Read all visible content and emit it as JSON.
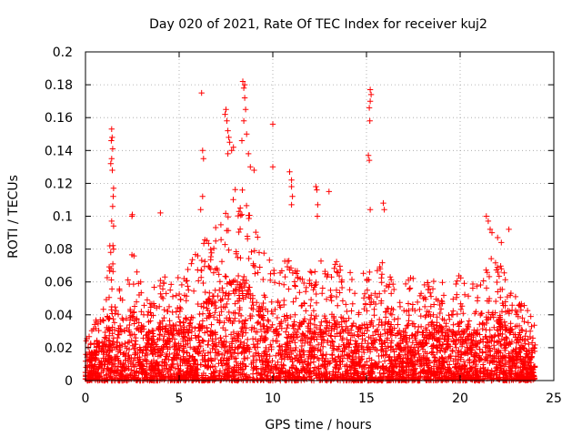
{
  "chart_data": {
    "type": "scatter",
    "title": "Day 020 of 2021, Rate Of TEC Index for receiver kuj2",
    "xlabel": "GPS time / hours",
    "ylabel": "ROTI / TECUs",
    "xlim": [
      0,
      25
    ],
    "ylim": [
      0,
      0.2
    ],
    "x_ticks": [
      0,
      5,
      10,
      15,
      20,
      25
    ],
    "x_tick_labels": [
      "0",
      "5",
      "10",
      "15",
      "20",
      "25"
    ],
    "y_ticks": [
      0,
      0.02,
      0.04,
      0.06,
      0.08,
      0.1,
      0.12,
      0.14,
      0.16,
      0.18,
      0.2
    ],
    "y_tick_labels": [
      "0",
      "0.02",
      "0.04",
      "0.06",
      "0.08",
      "0.1",
      "0.12",
      "0.14",
      "0.16",
      "0.18",
      "0.2"
    ],
    "grid": true,
    "marker": "+",
    "color": "#ff0000",
    "time_range_hours": [
      0,
      24
    ],
    "envelope": [
      [
        0.0,
        0.025
      ],
      [
        0.5,
        0.035
      ],
      [
        1.0,
        0.05
      ],
      [
        1.5,
        0.09
      ],
      [
        2.0,
        0.05
      ],
      [
        2.5,
        0.08
      ],
      [
        3.0,
        0.06
      ],
      [
        3.5,
        0.055
      ],
      [
        4.0,
        0.07
      ],
      [
        4.5,
        0.06
      ],
      [
        5.0,
        0.065
      ],
      [
        5.5,
        0.07
      ],
      [
        6.0,
        0.08
      ],
      [
        6.5,
        0.09
      ],
      [
        7.0,
        0.1
      ],
      [
        7.5,
        0.11
      ],
      [
        8.0,
        0.12
      ],
      [
        8.5,
        0.115
      ],
      [
        9.0,
        0.1
      ],
      [
        9.5,
        0.09
      ],
      [
        10.0,
        0.075
      ],
      [
        10.5,
        0.07
      ],
      [
        11.0,
        0.08
      ],
      [
        11.5,
        0.065
      ],
      [
        12.0,
        0.07
      ],
      [
        12.5,
        0.08
      ],
      [
        13.0,
        0.065
      ],
      [
        13.5,
        0.075
      ],
      [
        14.0,
        0.07
      ],
      [
        14.5,
        0.06
      ],
      [
        15.0,
        0.07
      ],
      [
        15.5,
        0.065
      ],
      [
        16.0,
        0.08
      ],
      [
        16.5,
        0.055
      ],
      [
        17.0,
        0.06
      ],
      [
        17.5,
        0.065
      ],
      [
        18.0,
        0.06
      ],
      [
        18.5,
        0.065
      ],
      [
        19.0,
        0.06
      ],
      [
        19.5,
        0.06
      ],
      [
        20.0,
        0.065
      ],
      [
        20.5,
        0.06
      ],
      [
        21.0,
        0.06
      ],
      [
        21.5,
        0.08
      ],
      [
        22.0,
        0.075
      ],
      [
        22.5,
        0.065
      ],
      [
        23.0,
        0.05
      ],
      [
        23.5,
        0.045
      ],
      [
        24.0,
        0.035
      ]
    ],
    "spikes": [
      [
        1.4,
        0.153
      ],
      [
        1.42,
        0.148
      ],
      [
        1.38,
        0.146
      ],
      [
        1.45,
        0.141
      ],
      [
        1.4,
        0.135
      ],
      [
        1.35,
        0.132
      ],
      [
        1.43,
        0.128
      ],
      [
        1.5,
        0.117
      ],
      [
        1.48,
        0.112
      ],
      [
        1.45,
        0.106
      ],
      [
        1.4,
        0.097
      ],
      [
        1.5,
        0.094
      ],
      [
        1.3,
        0.082
      ],
      [
        1.35,
        0.078
      ],
      [
        1.5,
        0.08
      ],
      [
        2.5,
        0.101
      ],
      [
        2.48,
        0.1
      ],
      [
        4.0,
        0.102
      ],
      [
        6.2,
        0.175
      ],
      [
        6.25,
        0.14
      ],
      [
        6.3,
        0.135
      ],
      [
        6.25,
        0.112
      ],
      [
        6.15,
        0.104
      ],
      [
        7.5,
        0.165
      ],
      [
        7.45,
        0.162
      ],
      [
        7.55,
        0.158
      ],
      [
        7.6,
        0.152
      ],
      [
        7.65,
        0.148
      ],
      [
        7.7,
        0.145
      ],
      [
        7.6,
        0.138
      ],
      [
        7.8,
        0.14
      ],
      [
        7.9,
        0.142
      ],
      [
        8.4,
        0.182
      ],
      [
        8.45,
        0.178
      ],
      [
        8.5,
        0.18
      ],
      [
        8.5,
        0.172
      ],
      [
        8.55,
        0.165
      ],
      [
        8.45,
        0.158
      ],
      [
        8.6,
        0.15
      ],
      [
        8.35,
        0.146
      ],
      [
        8.7,
        0.138
      ],
      [
        8.8,
        0.13
      ],
      [
        9.0,
        0.128
      ],
      [
        10.0,
        0.156
      ],
      [
        10.0,
        0.13
      ],
      [
        10.9,
        0.127
      ],
      [
        11.0,
        0.122
      ],
      [
        11.0,
        0.118
      ],
      [
        11.05,
        0.112
      ],
      [
        11.0,
        0.107
      ],
      [
        12.3,
        0.118
      ],
      [
        12.35,
        0.116
      ],
      [
        12.4,
        0.107
      ],
      [
        12.38,
        0.1
      ],
      [
        13.0,
        0.115
      ],
      [
        15.2,
        0.177
      ],
      [
        15.25,
        0.174
      ],
      [
        15.2,
        0.17
      ],
      [
        15.15,
        0.166
      ],
      [
        15.18,
        0.158
      ],
      [
        15.1,
        0.137
      ],
      [
        15.15,
        0.134
      ],
      [
        15.2,
        0.104
      ],
      [
        15.9,
        0.108
      ],
      [
        15.95,
        0.104
      ],
      [
        21.4,
        0.1
      ],
      [
        21.5,
        0.097
      ],
      [
        21.6,
        0.092
      ],
      [
        21.7,
        0.09
      ],
      [
        22.0,
        0.087
      ],
      [
        22.2,
        0.084
      ],
      [
        22.6,
        0.092
      ]
    ]
  }
}
